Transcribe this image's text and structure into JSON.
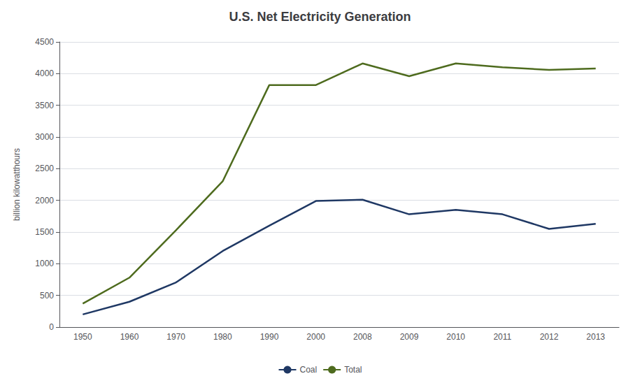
{
  "chart_data": {
    "type": "line",
    "title": "U.S. Net Electricity Generation",
    "ylabel": "billion kilowatthours",
    "categories": [
      "1950",
      "1960",
      "1970",
      "1980",
      "1990",
      "2000",
      "2008",
      "2009",
      "2010",
      "2011",
      "2012",
      "2013"
    ],
    "series": [
      {
        "name": "Coal",
        "color": "#1f3864",
        "values": [
          200,
          400,
          705,
          1200,
          1600,
          1990,
          2010,
          1780,
          1850,
          1780,
          1550,
          1630
        ]
      },
      {
        "name": "Total",
        "color": "#4e6b1e",
        "values": [
          370,
          780,
          1530,
          2300,
          3820,
          3820,
          4160,
          3960,
          4160,
          4100,
          4060,
          4080
        ]
      }
    ],
    "ylim": [
      0,
      4500
    ],
    "yticks": [
      0,
      500,
      1000,
      1500,
      2000,
      2500,
      3000,
      3500,
      4000,
      4500
    ],
    "grid": true,
    "legend": "bottom"
  }
}
